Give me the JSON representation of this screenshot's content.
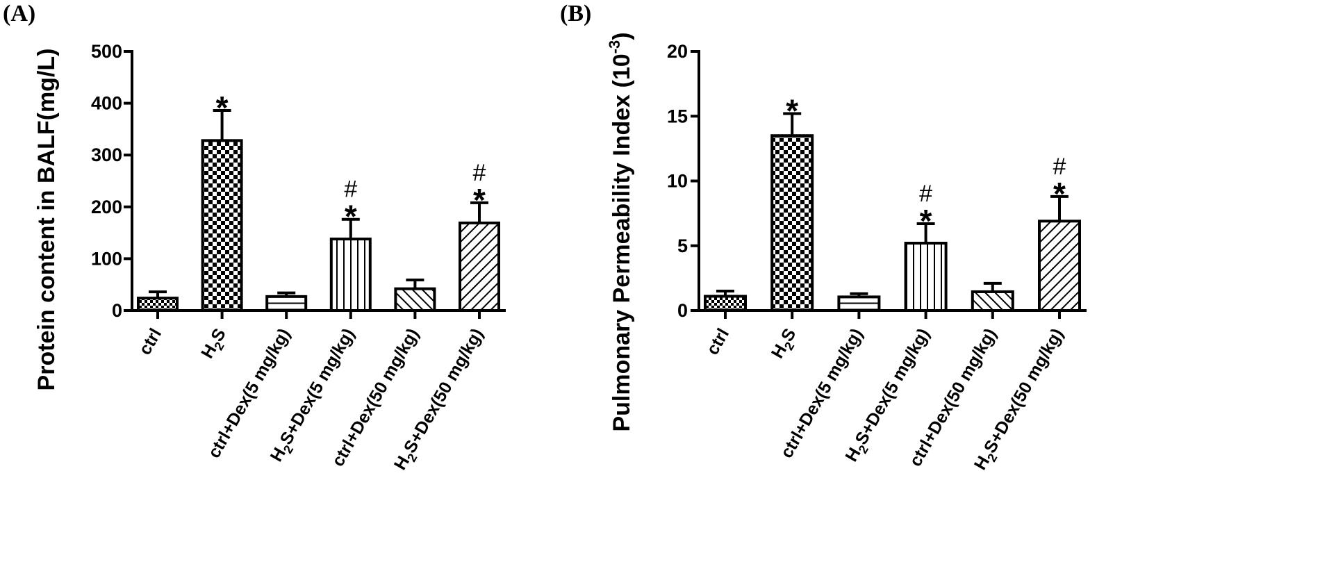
{
  "chart_data": [
    {
      "type": "bar",
      "panel_label": "(A)",
      "ylabel": "Protein content in BALF(mg/L)",
      "xlabel": "",
      "ylim": [
        0,
        500
      ],
      "yticks": [
        "0",
        "100",
        "200",
        "300",
        "400",
        "500"
      ],
      "categories": [
        {
          "pre": "ctrl",
          "sub": "",
          "post": ""
        },
        {
          "pre": "H",
          "sub": "2",
          "post": "S"
        },
        {
          "pre": "ctrl+Dex(5 mg/kg)",
          "sub": "",
          "post": ""
        },
        {
          "pre": "H",
          "sub": "2",
          "post": "S+Dex(5 mg/kg)"
        },
        {
          "pre": "ctrl+Dex(50 mg/kg)",
          "sub": "",
          "post": ""
        },
        {
          "pre": "H",
          "sub": "2",
          "post": "S+Dex(50 mg/kg)"
        }
      ],
      "values": [
        24,
        328,
        27,
        138,
        42,
        169
      ],
      "errors": [
        12,
        58,
        7,
        38,
        17,
        39
      ],
      "patterns": [
        "checker-small",
        "checker-large",
        "horizontal-lines",
        "vertical-lines",
        "diagonal-up",
        "diagonal-down"
      ],
      "stars": [
        "",
        "*",
        "",
        "*",
        "",
        "*"
      ],
      "hashes": [
        "",
        "",
        "",
        "#",
        "",
        "#"
      ]
    },
    {
      "type": "bar",
      "panel_label": "(B)",
      "ylabel": "Pulmonary Permeability Index (10",
      "ylabel_sup": "-3",
      "ylabel_end": ")",
      "xlabel": "",
      "ylim": [
        0,
        20
      ],
      "yticks": [
        "0",
        "5",
        "10",
        "15",
        "20"
      ],
      "categories": [
        {
          "pre": "ctrl",
          "sub": "",
          "post": ""
        },
        {
          "pre": "H",
          "sub": "2",
          "post": "S"
        },
        {
          "pre": "ctrl+Dex(5 mg/kg)",
          "sub": "",
          "post": ""
        },
        {
          "pre": "H",
          "sub": "2",
          "post": "S+Dex(5 mg/kg)"
        },
        {
          "pre": "ctrl+Dex(50 mg/kg)",
          "sub": "",
          "post": ""
        },
        {
          "pre": "H",
          "sub": "2",
          "post": "S+Dex(50 mg/kg)"
        }
      ],
      "values": [
        1.1,
        13.5,
        1.05,
        5.2,
        1.45,
        6.9
      ],
      "errors": [
        0.4,
        1.7,
        0.25,
        1.5,
        0.65,
        1.9
      ],
      "patterns": [
        "checker-small",
        "checker-large",
        "horizontal-lines",
        "vertical-lines",
        "diagonal-up",
        "diagonal-down"
      ],
      "stars": [
        "",
        "*",
        "",
        "*",
        "",
        "*"
      ],
      "hashes": [
        "",
        "",
        "",
        "#",
        "",
        "#"
      ]
    }
  ]
}
